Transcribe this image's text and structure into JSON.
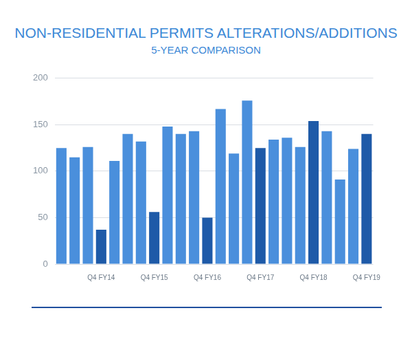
{
  "chart_data": {
    "type": "bar",
    "title": "NON-RESIDENTIAL PERMITS ALTERATIONS/ADDITIONS",
    "subtitle": "5-YEAR COMPARISON",
    "categories": [
      null,
      null,
      null,
      "Q4 FY14",
      null,
      null,
      null,
      "Q4 FY15",
      null,
      null,
      null,
      "Q4 FY16",
      null,
      null,
      null,
      "Q4 FY17",
      null,
      null,
      null,
      "Q4 FY18",
      null,
      null,
      null,
      "Q4 FY19"
    ],
    "values": [
      125,
      115,
      126,
      37,
      111,
      140,
      132,
      56,
      148,
      140,
      143,
      50,
      167,
      119,
      176,
      125,
      134,
      136,
      126,
      154,
      143,
      91,
      124,
      140
    ],
    "colors": [
      "#4a8fdc",
      "#4a8fdc",
      "#4a8fdc",
      "#1e5aa8",
      "#4a8fdc",
      "#4a8fdc",
      "#4a8fdc",
      "#1e5aa8",
      "#4a8fdc",
      "#4a8fdc",
      "#4a8fdc",
      "#1e5aa8",
      "#4a8fdc",
      "#4a8fdc",
      "#4a8fdc",
      "#1e5aa8",
      "#4a8fdc",
      "#4a8fdc",
      "#4a8fdc",
      "#1e5aa8",
      "#4a8fdc",
      "#4a8fdc",
      "#4a8fdc",
      "#1e5aa8"
    ],
    "ylim": [
      0,
      200
    ],
    "yticks": [
      0,
      50,
      100,
      150,
      200
    ],
    "grid": true
  }
}
